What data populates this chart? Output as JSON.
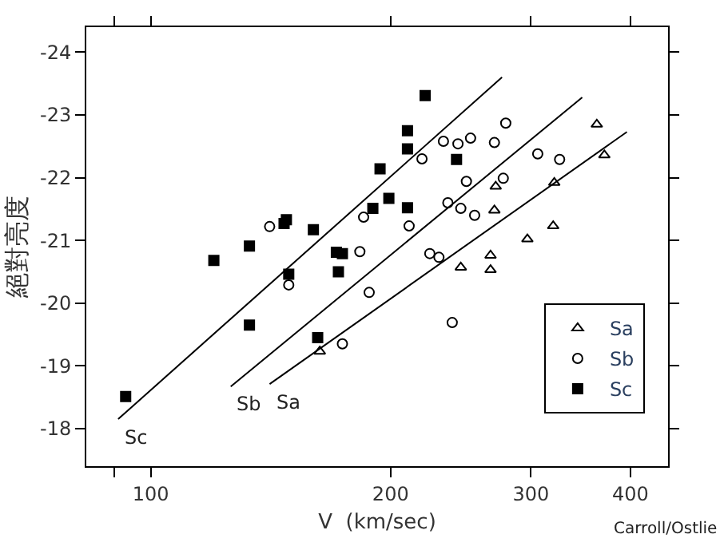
{
  "chart_data": {
    "type": "scatter",
    "xlabel": "V  (km/sec)",
    "ylabel": "絕對亮度",
    "log": "x",
    "xlim": [
      83,
      446
    ],
    "xticks": [
      {
        "value": 90,
        "label": null
      },
      100,
      200,
      300,
      400
    ],
    "ylim": [
      -17.4,
      -24.4
    ],
    "yticks": [
      -24,
      -23,
      -22,
      -21,
      -20,
      -19,
      -18
    ],
    "legend": "bottom right",
    "series": [
      {
        "name": "Sa",
        "color": "#000000",
        "marker": "triangle-open",
        "x": [
          163,
          245,
          267,
          267,
          271,
          270,
          297,
          320,
          321,
          363,
          371
        ],
        "values": [
          -19.23,
          -20.57,
          -20.76,
          -20.53,
          -21.86,
          -21.48,
          -21.02,
          -21.23,
          -21.92,
          -22.85,
          -22.36
        ]
      },
      {
        "name": "Sb",
        "color": "#000000",
        "marker": "circle-open",
        "x": [
          141,
          149,
          183,
          174,
          185,
          188,
          211,
          219,
          233,
          243,
          252,
          270,
          279,
          306,
          326,
          249,
          277,
          236,
          245,
          255,
          224,
          230,
          239
        ],
        "values": [
          -21.22,
          -20.29,
          -20.82,
          -19.35,
          -21.37,
          -20.17,
          -21.23,
          -22.3,
          -22.58,
          -22.54,
          -22.63,
          -22.56,
          -22.87,
          -22.38,
          -22.29,
          -21.94,
          -21.99,
          -21.6,
          -21.51,
          -21.4,
          -20.79,
          -20.73,
          -19.69
        ]
      },
      {
        "name": "Sc",
        "color": "#000000",
        "marker": "square",
        "x": [
          93,
          120,
          133,
          133,
          147,
          148,
          149,
          160,
          171,
          174,
          172,
          162,
          190,
          194,
          199,
          210,
          210,
          210,
          221,
          242
        ],
        "values": [
          -18.51,
          -20.68,
          -20.91,
          -19.65,
          -21.27,
          -21.33,
          -20.46,
          -21.17,
          -20.81,
          -20.79,
          -20.5,
          -19.45,
          -21.51,
          -22.14,
          -21.67,
          -22.75,
          -22.46,
          -21.52,
          -23.31,
          -22.29
        ]
      },
      {
        "type": "line",
        "color": "#000000",
        "x": [
          91,
          276
        ],
        "values": [
          -18.15,
          -23.6
        ]
      },
      {
        "type": "line",
        "color": "#000000",
        "x": [
          126,
          348
        ],
        "values": [
          -18.67,
          -23.28
        ]
      },
      {
        "type": "line",
        "color": "#000000",
        "x": [
          141,
          396
        ],
        "values": [
          -18.71,
          -22.73
        ]
      }
    ],
    "annotations": [
      {
        "text": "Sc",
        "x": 91,
        "y": -18.15
      },
      {
        "text": "Sb",
        "x": 126,
        "y": -18.67
      },
      {
        "text": "Sa",
        "x": 141,
        "y": -18.71
      },
      "Carroll/Ostlie"
    ]
  }
}
